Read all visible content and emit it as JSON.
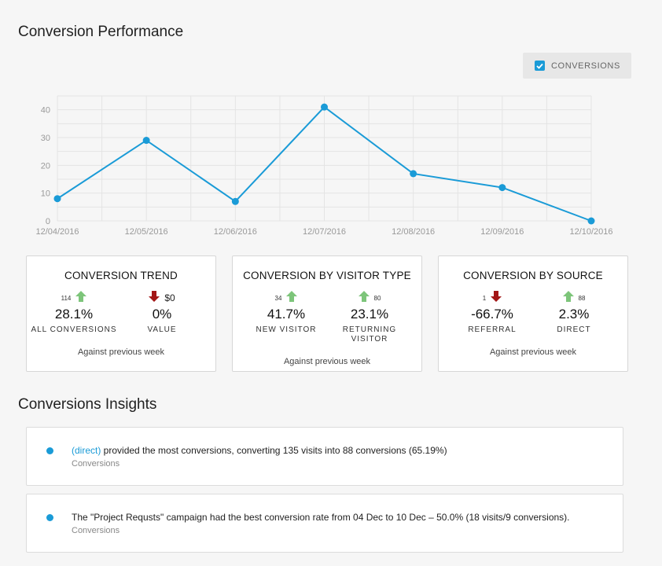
{
  "header": {
    "title": "Conversion Performance"
  },
  "legend": {
    "label": "CONVERSIONS",
    "checked": true,
    "color": "#1a9bd7"
  },
  "chart_data": {
    "type": "line",
    "x": [
      "12/04/2016",
      "12/05/2016",
      "12/06/2016",
      "12/07/2016",
      "12/08/2016",
      "12/09/2016",
      "12/10/2016"
    ],
    "series": [
      {
        "name": "CONVERSIONS",
        "values": [
          8,
          29,
          7,
          41,
          17,
          12,
          0
        ]
      }
    ],
    "yticks": [
      "0",
      "10",
      "20",
      "30",
      "40"
    ],
    "ylim": [
      0,
      45
    ],
    "grid": true,
    "color": "#1a9bd7"
  },
  "cards": [
    {
      "title": "CONVERSION TREND",
      "metrics": [
        {
          "count": "114",
          "direction": "up",
          "pct": "28.1%",
          "label": "ALL CONVERSIONS"
        },
        {
          "count": "$0",
          "direction": "down",
          "pct": "0%",
          "label": "VALUE"
        }
      ],
      "footer": "Against previous week"
    },
    {
      "title": "CONVERSION BY VISITOR TYPE",
      "metrics": [
        {
          "count": "34",
          "direction": "up",
          "pct": "41.7%",
          "label": "NEW VISITOR"
        },
        {
          "count": "80",
          "direction": "up",
          "pct": "23.1%",
          "label": "RETURNING VISITOR"
        }
      ],
      "footer": "Against previous week"
    },
    {
      "title": "CONVERSION BY SOURCE",
      "metrics": [
        {
          "count": "1",
          "direction": "down",
          "pct": "-66.7%",
          "label": "REFERRAL"
        },
        {
          "count": "88",
          "direction": "up",
          "pct": "2.3%",
          "label": "DIRECT"
        }
      ],
      "footer": "Against previous week"
    }
  ],
  "colors": {
    "up": "#7dc57a",
    "down": "#a31616",
    "accent": "#1a9bd7"
  },
  "insights": {
    "title": "Conversions Insights",
    "items": [
      {
        "link": "(direct)",
        "text": " provided the most conversions, converting 135 visits into 88 conversions (65.19%)",
        "sub": "Conversions"
      },
      {
        "link": "",
        "text": "The \"Project Requsts\" campaign had the best conversion rate from 04 Dec to 10 Dec – 50.0% (18 visits/9 conversions).",
        "sub": "Conversions"
      }
    ]
  }
}
